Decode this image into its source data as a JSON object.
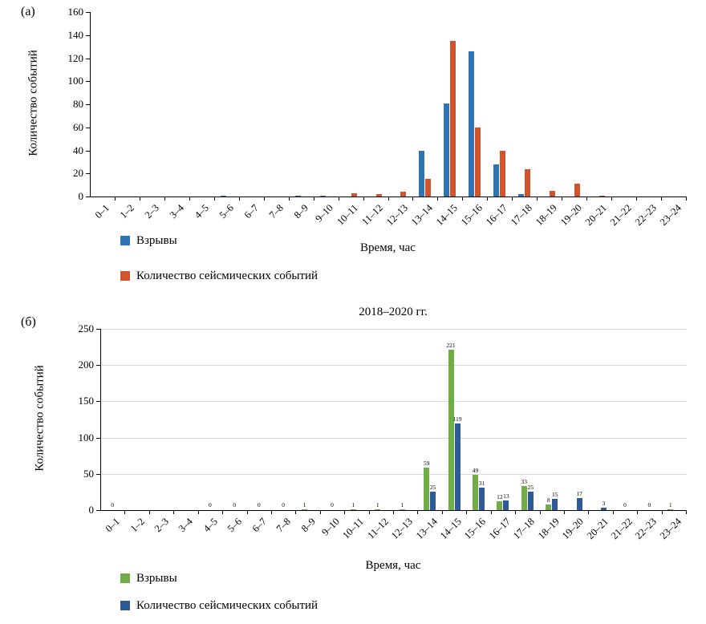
{
  "figure": {
    "panel_a_label": "(а)",
    "panel_b_label": "(б)"
  },
  "chart_data": [
    {
      "type": "bar",
      "panel": "(а)",
      "title": "",
      "xlabel": "Время, час",
      "ylabel": "Количество событий",
      "ylim": [
        0,
        160
      ],
      "ytick_step": 20,
      "grid": false,
      "show_value_labels": false,
      "legend_position": "bottom-left",
      "categories": [
        "0–1",
        "1–2",
        "2–3",
        "3–4",
        "4–5",
        "5–6",
        "6–7",
        "7–8",
        "8–9",
        "9–10",
        "10–11",
        "11–12",
        "12–13",
        "13–14",
        "14–15",
        "15–16",
        "16–17",
        "17–18",
        "18–19",
        "19–20",
        "20–21",
        "21–22",
        "22–23",
        "23–24"
      ],
      "series": [
        {
          "name": "Взрывы",
          "color": "#2e74b5",
          "values": [
            0,
            0,
            0,
            0,
            0,
            1,
            0,
            0,
            1,
            1,
            0,
            0,
            0,
            40,
            81,
            126,
            28,
            2,
            0,
            0,
            0,
            0,
            0,
            0
          ]
        },
        {
          "name": "Количество сейсмических событий",
          "color": "#d2542c",
          "values": [
            0,
            0,
            0,
            0,
            0,
            0,
            0,
            0,
            0,
            0,
            3,
            2,
            4,
            15,
            135,
            60,
            40,
            24,
            5,
            11,
            1,
            0,
            0,
            0
          ]
        }
      ]
    },
    {
      "type": "bar",
      "panel": "(б)",
      "title": "2018–2020 гг.",
      "xlabel": "Время, час",
      "ylabel": "Количество событий",
      "ylim": [
        0,
        250
      ],
      "ytick_step": 50,
      "grid": true,
      "show_value_labels": true,
      "legend_position": "bottom-left",
      "categories": [
        "0–1",
        "1–2",
        "2–3",
        "3–4",
        "4–5",
        "5–6",
        "6–7",
        "7–8",
        "8–9",
        "9–10",
        "10–11",
        "11–12",
        "12–13",
        "13–14",
        "14–15",
        "15–16",
        "16–17",
        "17–18",
        "18–19",
        "19–20",
        "20–21",
        "21–22",
        "22–23",
        "23–24"
      ],
      "series": [
        {
          "name": "Взрывы",
          "color": "#70ad47",
          "values": [
            0,
            0,
            0,
            0,
            0,
            0,
            0,
            0,
            1,
            0,
            1,
            1,
            1,
            59,
            221,
            49,
            12,
            33,
            8,
            0,
            0,
            0,
            0,
            1
          ]
        },
        {
          "name": "Количество сейсмических событий",
          "color": "#2e5b97",
          "values": [
            0,
            0,
            0,
            0,
            0,
            0,
            0,
            0,
            0,
            0,
            0,
            0,
            0,
            25,
            119,
            31,
            13,
            25,
            15,
            17,
            3,
            0,
            0,
            0
          ]
        }
      ],
      "zero_labels": {
        "0": "0",
        "4": "0",
        "5": "0",
        "6": "0",
        "7": "0",
        "9": "0",
        "21": "0",
        "22": "0"
      }
    }
  ]
}
